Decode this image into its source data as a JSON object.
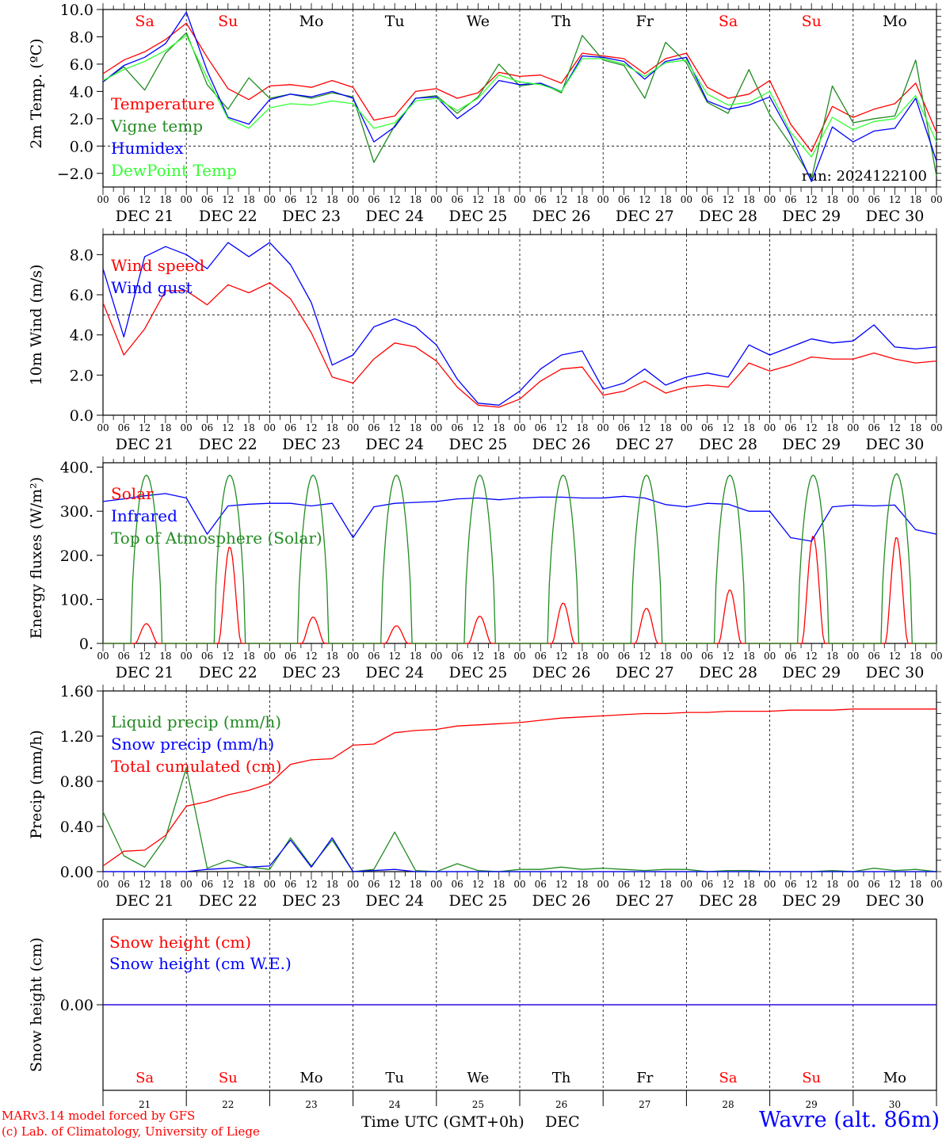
{
  "chart_data": [
    {
      "type": "line",
      "ylabel": "2m Temp. (ºC)",
      "ylim": [
        -3.0,
        10.0
      ],
      "yticks": [
        "10.0",
        "8.0",
        "6.0",
        "4.0",
        "2.0",
        "0.0",
        "−2.0"
      ],
      "reference_line": 0.0,
      "legend": [
        "Temperature",
        "Vigne temp",
        "Humidex",
        "DewPoint Temp"
      ],
      "annotation": "run: 2024122100",
      "day_labels": [
        "Sa",
        "Su",
        "Mo",
        "Tu",
        "We",
        "Th",
        "Fr",
        "Sa",
        "Su",
        "Mo"
      ],
      "x_hours": [
        0,
        6,
        12,
        18,
        24,
        30,
        36,
        42,
        48,
        54,
        60,
        66,
        72,
        78,
        84,
        90,
        96,
        102,
        108,
        114,
        120,
        126,
        132,
        138,
        144,
        150,
        156,
        162,
        168,
        174,
        180,
        186,
        192,
        198,
        204,
        210,
        216,
        222,
        228,
        234,
        240
      ],
      "series": [
        {
          "name": "Temperature",
          "color": "#ff0000",
          "values": [
            5.3,
            6.3,
            6.9,
            7.8,
            9.0,
            6.5,
            4.2,
            3.4,
            4.4,
            4.5,
            4.3,
            4.8,
            4.3,
            1.9,
            2.2,
            4.0,
            4.2,
            3.5,
            3.9,
            5.4,
            5.1,
            5.2,
            4.6,
            6.8,
            6.6,
            6.4,
            5.3,
            6.4,
            6.8,
            4.3,
            3.5,
            3.8,
            4.8,
            1.6,
            -0.4,
            2.9,
            2.1,
            2.7,
            3.1,
            4.6,
            1.0
          ]
        },
        {
          "name": "Vigne temp",
          "color": "#228b22",
          "values": [
            4.7,
            5.8,
            4.1,
            6.8,
            8.3,
            4.5,
            2.7,
            5.0,
            3.5,
            3.8,
            3.5,
            3.9,
            3.6,
            -1.2,
            1.5,
            3.5,
            3.7,
            2.4,
            3.6,
            6.0,
            4.4,
            4.6,
            3.9,
            8.1,
            6.3,
            5.9,
            3.5,
            7.6,
            6.1,
            3.2,
            2.4,
            5.6,
            2.3,
            0.1,
            -2.4,
            4.4,
            1.7,
            2.0,
            2.2,
            6.3,
            -2.2
          ]
        },
        {
          "name": "Humidex",
          "color": "#0000ff",
          "values": [
            4.7,
            5.9,
            6.5,
            7.5,
            9.8,
            5.5,
            2.1,
            1.6,
            3.4,
            3.8,
            3.6,
            4.0,
            3.5,
            0.3,
            1.4,
            3.5,
            3.6,
            2.0,
            3.1,
            4.8,
            4.5,
            4.6,
            4.0,
            6.6,
            6.5,
            6.2,
            4.9,
            6.2,
            6.5,
            3.3,
            2.7,
            3.0,
            3.6,
            0.8,
            -2.6,
            1.4,
            0.3,
            1.1,
            1.3,
            3.5,
            -1.1
          ]
        },
        {
          "name": "DewPoint Temp",
          "color": "#33ff33",
          "values": [
            4.8,
            5.6,
            6.2,
            7.0,
            8.1,
            5.0,
            2.0,
            1.3,
            2.8,
            3.1,
            3.0,
            3.3,
            3.1,
            1.3,
            1.7,
            3.3,
            3.5,
            2.6,
            3.5,
            5.2,
            4.7,
            4.5,
            4.0,
            6.4,
            6.4,
            6.0,
            5.1,
            6.1,
            6.3,
            3.8,
            3.0,
            3.2,
            4.0,
            1.0,
            -0.8,
            2.1,
            1.2,
            1.8,
            2.0,
            3.7,
            0.3
          ]
        }
      ]
    },
    {
      "type": "line",
      "ylabel": "10m Wind (m/s)",
      "ylim": [
        0.0,
        9.0
      ],
      "yticks": [
        "8.0",
        "6.0",
        "4.0",
        "2.0",
        "0.0"
      ],
      "reference_line": 5.0,
      "legend": [
        "Wind speed",
        "Wind gust"
      ],
      "x_hours": [
        0,
        6,
        12,
        18,
        24,
        30,
        36,
        42,
        48,
        54,
        60,
        66,
        72,
        78,
        84,
        90,
        96,
        102,
        108,
        114,
        120,
        126,
        132,
        138,
        144,
        150,
        156,
        162,
        168,
        174,
        180,
        186,
        192,
        198,
        204,
        210,
        216,
        222,
        228,
        234,
        240
      ],
      "series": [
        {
          "name": "Wind speed",
          "color": "#ff0000",
          "values": [
            5.6,
            3.0,
            4.3,
            6.2,
            6.2,
            5.5,
            6.5,
            6.1,
            6.6,
            5.8,
            4.1,
            1.9,
            1.6,
            2.8,
            3.6,
            3.4,
            2.7,
            1.4,
            0.5,
            0.4,
            0.8,
            1.7,
            2.3,
            2.4,
            1.0,
            1.2,
            1.7,
            1.1,
            1.4,
            1.5,
            1.4,
            2.6,
            2.2,
            2.5,
            2.9,
            2.8,
            2.8,
            3.1,
            2.8,
            2.6,
            2.7
          ]
        },
        {
          "name": "Wind gust",
          "color": "#0000ff",
          "values": [
            7.3,
            3.9,
            7.9,
            8.4,
            8.0,
            7.3,
            8.6,
            7.9,
            8.6,
            7.5,
            5.6,
            2.5,
            3.0,
            4.4,
            4.8,
            4.4,
            3.5,
            1.8,
            0.6,
            0.5,
            1.2,
            2.3,
            3.0,
            3.2,
            1.3,
            1.6,
            2.3,
            1.5,
            1.9,
            2.1,
            1.9,
            3.5,
            3.0,
            3.4,
            3.8,
            3.6,
            3.7,
            4.5,
            3.4,
            3.3,
            3.4
          ]
        }
      ]
    },
    {
      "type": "line",
      "ylabel": "Energy fluxes (W/m²)",
      "ylim": [
        0,
        400
      ],
      "yticks": [
        "400.",
        "300.",
        "200.",
        "100.",
        "0."
      ],
      "legend": [
        "Solar",
        "Infrared",
        "Top of Atmosphere (Solar)"
      ],
      "days": 10,
      "series": [
        {
          "name": "Solar",
          "color": "#ff0000",
          "daily_peak": [
            45,
            220,
            60,
            40,
            62,
            92,
            80,
            122,
            245,
            242
          ]
        },
        {
          "name": "Infrared",
          "color": "#0000ff",
          "x_hours": [
            0,
            6,
            12,
            18,
            24,
            30,
            36,
            42,
            48,
            54,
            60,
            66,
            72,
            78,
            84,
            90,
            96,
            102,
            108,
            114,
            120,
            126,
            132,
            138,
            144,
            150,
            156,
            162,
            168,
            174,
            180,
            186,
            192,
            198,
            204,
            210,
            216,
            222,
            228,
            234,
            240
          ],
          "values": [
            322,
            328,
            335,
            340,
            330,
            248,
            312,
            316,
            318,
            318,
            312,
            318,
            240,
            310,
            318,
            320,
            322,
            328,
            330,
            326,
            330,
            332,
            332,
            330,
            330,
            334,
            330,
            315,
            310,
            318,
            316,
            300,
            300,
            240,
            232,
            310,
            314,
            312,
            314,
            258,
            248
          ]
        },
        {
          "name": "Top of Atmosphere (Solar)",
          "color": "#228b22",
          "daily_peak": [
            382,
            382,
            382,
            382,
            382,
            382,
            382,
            382,
            382,
            385
          ]
        }
      ]
    },
    {
      "type": "line",
      "ylabel": "Precip (mm/h)",
      "ylim": [
        0.0,
        1.6
      ],
      "yticks": [
        "1.60",
        "1.20",
        "0.80",
        "0.40",
        "0.00"
      ],
      "legend": [
        "Liquid precip (mm/h)",
        "Snow precip (mm/h)",
        "Total cumulated (cm)"
      ],
      "x_hours": [
        0,
        6,
        12,
        18,
        24,
        30,
        36,
        42,
        48,
        54,
        60,
        66,
        72,
        78,
        84,
        90,
        96,
        102,
        108,
        114,
        120,
        126,
        132,
        138,
        144,
        150,
        156,
        162,
        168,
        174,
        180,
        186,
        192,
        198,
        204,
        210,
        216,
        222,
        228,
        234,
        240
      ],
      "series": [
        {
          "name": "Liquid precip (mm/h)",
          "color": "#228b22",
          "values": [
            0.53,
            0.14,
            0.04,
            0.3,
            0.92,
            0.03,
            0.1,
            0.04,
            0.02,
            0.3,
            0.05,
            0.28,
            0.0,
            0.02,
            0.35,
            0.01,
            0.0,
            0.07,
            0.01,
            0.0,
            0.02,
            0.02,
            0.04,
            0.02,
            0.03,
            0.02,
            0.01,
            0.02,
            0.02,
            0.0,
            0.01,
            0.01,
            0.0,
            0.0,
            0.0,
            0.01,
            0.0,
            0.03,
            0.01,
            0.02,
            0.0
          ]
        },
        {
          "name": "Snow precip (mm/h)",
          "color": "#0000ff",
          "values": [
            0.0,
            0.0,
            0.0,
            0.0,
            0.0,
            0.02,
            0.03,
            0.04,
            0.05,
            0.28,
            0.04,
            0.3,
            0.0,
            0.01,
            0.02,
            0.0,
            0.0,
            0.0,
            0.0,
            0.0,
            0.0,
            0.0,
            0.0,
            0.0,
            0.0,
            0.0,
            0.0,
            0.0,
            0.0,
            0.0,
            0.0,
            0.0,
            0.0,
            0.0,
            0.0,
            0.0,
            0.0,
            0.0,
            0.0,
            0.0,
            0.0
          ]
        },
        {
          "name": "Total cumulated (cm)",
          "color": "#ff0000",
          "values": [
            0.05,
            0.18,
            0.19,
            0.32,
            0.58,
            0.62,
            0.68,
            0.72,
            0.78,
            0.95,
            0.99,
            1.0,
            1.12,
            1.13,
            1.23,
            1.25,
            1.26,
            1.29,
            1.3,
            1.31,
            1.32,
            1.34,
            1.36,
            1.37,
            1.38,
            1.39,
            1.4,
            1.4,
            1.41,
            1.41,
            1.42,
            1.42,
            1.42,
            1.43,
            1.43,
            1.43,
            1.44,
            1.44,
            1.44,
            1.44,
            1.44
          ]
        }
      ]
    },
    {
      "type": "line",
      "ylabel": "Snow height (cm)",
      "yticks": [
        "0.00"
      ],
      "legend": [
        "Snow height (cm)",
        "Snow height (cm W.E.)"
      ],
      "series": [
        {
          "name": "Snow height (cm)",
          "color": "#ff0000",
          "values": [
            0.0,
            0.0
          ]
        },
        {
          "name": "Snow height (cm W.E.)",
          "color": "#0000ff",
          "values": [
            0.0,
            0.0
          ]
        }
      ]
    }
  ],
  "xaxis": {
    "hour_ticks": [
      "00",
      "06",
      "12",
      "18"
    ],
    "hour_end": "00",
    "date_labels": [
      "DEC 21",
      "DEC 22",
      "DEC 23",
      "DEC 24",
      "DEC 25",
      "DEC 26",
      "DEC 27",
      "DEC 28",
      "DEC 29",
      "DEC 30"
    ],
    "weekend_color": "#ff0000",
    "weekday_color": "#000000",
    "weekend_flags": [
      true,
      true,
      false,
      false,
      false,
      false,
      false,
      true,
      true,
      false
    ],
    "bottom_day_labels": [
      "Sa",
      "Su",
      "Mo",
      "Tu",
      "We",
      "Th",
      "Fr",
      "Sa",
      "Su",
      "Mo"
    ],
    "bottom_day_numbers": [
      "21",
      "22",
      "23",
      "24",
      "25",
      "26",
      "27",
      "28",
      "29",
      "30"
    ],
    "title": "Time UTC (GMT+0h)",
    "month": "DEC"
  },
  "footer": {
    "credit_line1": "MARv3.14 model forced by GFS",
    "credit_line2": "(c) Lab. of Climatology, University of Liege",
    "station": "Wavre (alt. 86m)",
    "credit_color": "#ff0000",
    "station_color": "#0000ff"
  }
}
